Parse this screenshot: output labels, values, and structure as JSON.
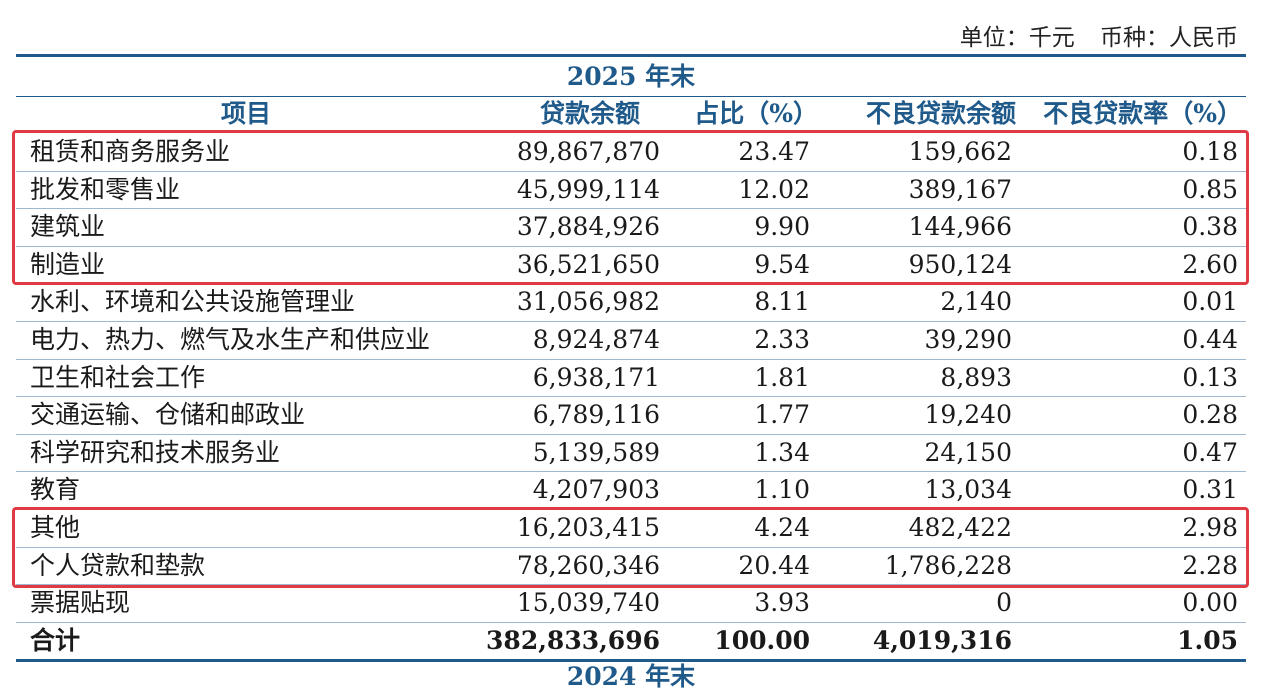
{
  "unit": {
    "unit_label": "单位：千元",
    "currency_label": "币种：人民币"
  },
  "period": "2025 年末",
  "headers": [
    "项目",
    "贷款余额",
    "占比（%）",
    "不良贷款余额",
    "不良贷款率（%）"
  ],
  "rows": [
    {
      "item": "租赁和商务服务业",
      "loan": "89,867,870",
      "share": "23.47",
      "npl": "159,662",
      "npl_rate": "0.18"
    },
    {
      "item": "批发和零售业",
      "loan": "45,999,114",
      "share": "12.02",
      "npl": "389,167",
      "npl_rate": "0.85"
    },
    {
      "item": "建筑业",
      "loan": "37,884,926",
      "share": "9.90",
      "npl": "144,966",
      "npl_rate": "0.38"
    },
    {
      "item": "制造业",
      "loan": "36,521,650",
      "share": "9.54",
      "npl": "950,124",
      "npl_rate": "2.60"
    },
    {
      "item": "水利、环境和公共设施管理业",
      "loan": "31,056,982",
      "share": "8.11",
      "npl": "2,140",
      "npl_rate": "0.01"
    },
    {
      "item": "电力、热力、燃气及水生产和供应业",
      "loan": "8,924,874",
      "share": "2.33",
      "npl": "39,290",
      "npl_rate": "0.44"
    },
    {
      "item": "卫生和社会工作",
      "loan": "6,938,171",
      "share": "1.81",
      "npl": "8,893",
      "npl_rate": "0.13"
    },
    {
      "item": "交通运输、仓储和邮政业",
      "loan": "6,789,116",
      "share": "1.77",
      "npl": "19,240",
      "npl_rate": "0.28"
    },
    {
      "item": "科学研究和技术服务业",
      "loan": "5,139,589",
      "share": "1.34",
      "npl": "24,150",
      "npl_rate": "0.47"
    },
    {
      "item": "教育",
      "loan": "4,207,903",
      "share": "1.10",
      "npl": "13,034",
      "npl_rate": "0.31"
    },
    {
      "item": "其他",
      "loan": "16,203,415",
      "share": "4.24",
      "npl": "482,422",
      "npl_rate": "2.98"
    },
    {
      "item": "个人贷款和垫款",
      "loan": "78,260,346",
      "share": "20.44",
      "npl": "1,786,228",
      "npl_rate": "2.28"
    },
    {
      "item": "票据贴现",
      "loan": "15,039,740",
      "share": "3.93",
      "npl": "0",
      "npl_rate": "0.00"
    }
  ],
  "total": {
    "item": "合计",
    "loan": "382,833,696",
    "share": "100.00",
    "npl": "4,019,316",
    "npl_rate": "1.05"
  },
  "next_period": "2024 年末",
  "colors": {
    "header_blue": "#1f5a8a",
    "highlight_red": "#e03a44"
  }
}
